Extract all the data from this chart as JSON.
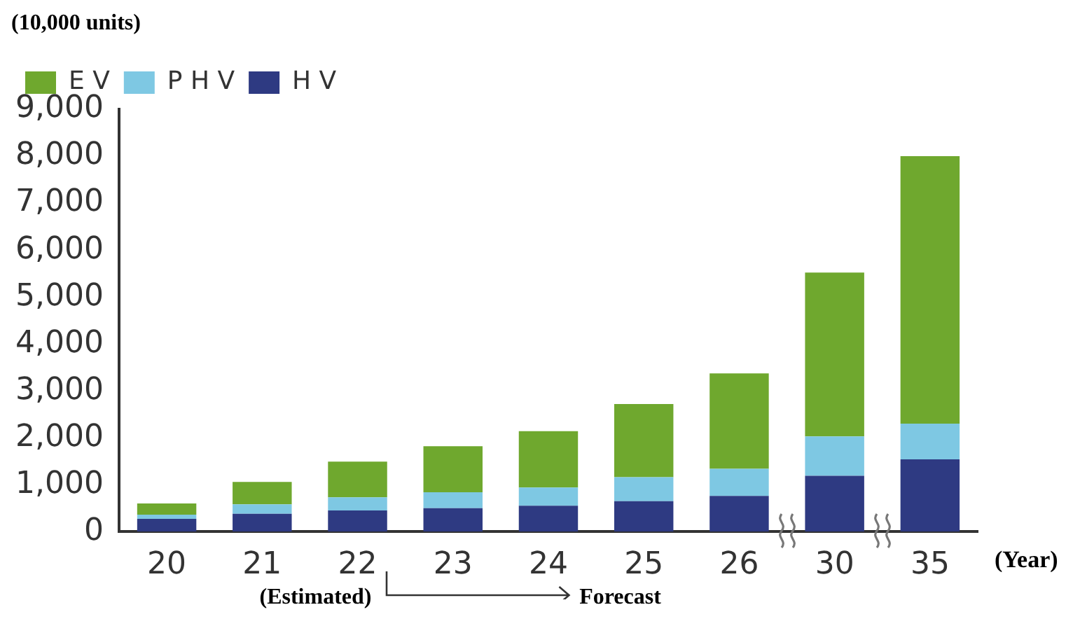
{
  "chart_data": {
    "type": "bar",
    "stacked": true,
    "ylabel": "(10,000 units)",
    "xlabel": "(Year)",
    "categories": [
      "20",
      "21",
      "22",
      "23",
      "24",
      "25",
      "26",
      "30",
      "35"
    ],
    "series": [
      {
        "name": "H V",
        "color": "#2e3a82",
        "values": [
          270,
          380,
          450,
          500,
          550,
          650,
          760,
          1190,
          1540
        ]
      },
      {
        "name": "P H V",
        "color": "#7ec8e3",
        "values": [
          90,
          200,
          280,
          340,
          390,
          510,
          580,
          840,
          760
        ]
      },
      {
        "name": "E V",
        "color": "#6fa82e",
        "values": [
          240,
          480,
          760,
          980,
          1200,
          1560,
          2030,
          3490,
          5700
        ]
      }
    ],
    "ylim": [
      0,
      9000
    ],
    "yticks": [
      {
        "value": 0,
        "label": "0"
      },
      {
        "value": 1000,
        "label": "1,000"
      },
      {
        "value": 2000,
        "label": "2,000"
      },
      {
        "value": 3000,
        "label": "3,000"
      },
      {
        "value": 4000,
        "label": "4,000"
      },
      {
        "value": 5000,
        "label": "5,000"
      },
      {
        "value": 6000,
        "label": "6,000"
      },
      {
        "value": 7000,
        "label": "7,000"
      },
      {
        "value": 8000,
        "label": "8,000"
      },
      {
        "value": 9000,
        "label": "9,000"
      }
    ],
    "grid": false,
    "legend": "top left",
    "annotations": [
      "(Estimated)",
      "Forecast"
    ]
  }
}
